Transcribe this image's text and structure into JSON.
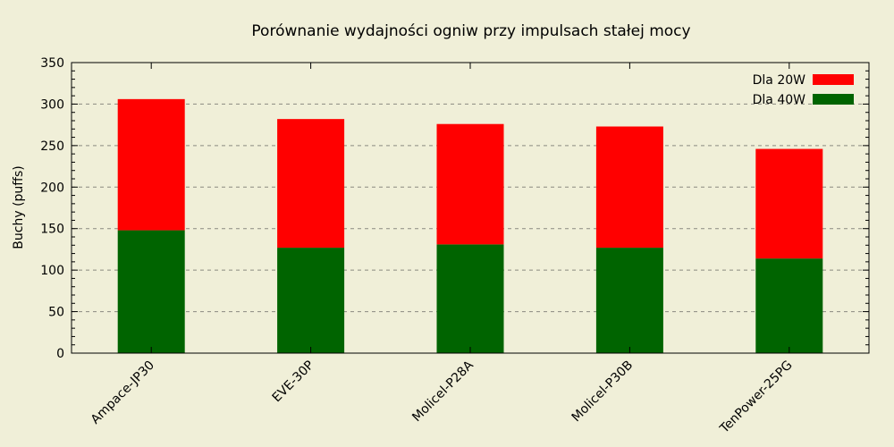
{
  "chart_data": {
    "type": "bar",
    "stacked": true,
    "title": "Porównanie wydajności ogniw przy impulsach stałej mocy",
    "xlabel": "",
    "ylabel": "Buchy (puffs)",
    "ylim": [
      0,
      350
    ],
    "yticks": [
      0,
      50,
      100,
      150,
      200,
      250,
      300,
      350
    ],
    "grid": true,
    "legend_position": "top-right",
    "categories": [
      "Ampace-JP30",
      "EVE-30P",
      "Molicel-P28A",
      "Molicel-P30B",
      "TenPower-25PG"
    ],
    "series": [
      {
        "name": "Dla 40W",
        "color": "#006400",
        "values": [
          148,
          127,
          131,
          127,
          114
        ]
      },
      {
        "name": "Dla 20W",
        "color": "#ff0000",
        "values": [
          158,
          155,
          145,
          146,
          132
        ]
      }
    ],
    "legend_order": [
      "Dla 20W",
      "Dla 40W"
    ],
    "background_color": "#f0efd8"
  }
}
